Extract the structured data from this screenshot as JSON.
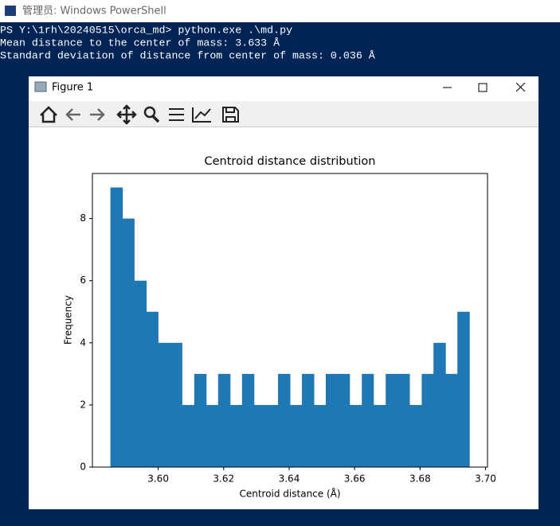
{
  "window": {
    "title": "管理员: Windows PowerShell"
  },
  "console": {
    "lines": [
      "PS Y:\\1rh\\20240515\\orca_md> python.exe .\\md.py",
      "Mean distance to the center of mass: 3.633 Å",
      "Standard deviation of distance from center of mass: 0.036 Å"
    ]
  },
  "figure_window": {
    "title": "Figure 1"
  },
  "chart_data": {
    "type": "histogram",
    "title": "Centroid distance distribution",
    "xlabel": "Centroid distance (Å)",
    "ylabel": "Frequency",
    "color": "#1f77b4",
    "bins": [
      3.5854,
      3.5891,
      3.5927,
      3.5964,
      3.6,
      3.6037,
      3.6073,
      3.611,
      3.6147,
      3.6183,
      3.622,
      3.6256,
      3.6293,
      3.6329,
      3.6366,
      3.6403,
      3.6439,
      3.6476,
      3.6512,
      3.6549,
      3.6585,
      3.6622,
      3.6658,
      3.6695,
      3.6732,
      3.6768,
      3.6805,
      3.6841,
      3.6878,
      3.6914,
      3.6951
    ],
    "values": [
      9,
      8,
      6,
      5,
      4,
      4,
      2,
      3,
      2,
      3,
      2,
      3,
      2,
      2,
      3,
      2,
      3,
      2,
      3,
      3,
      2,
      3,
      2,
      3,
      3,
      2,
      3,
      4,
      3,
      5
    ],
    "xlim": [
      3.5799,
      3.7006
    ],
    "xticks": [
      {
        "value": 3.6,
        "label": "3.60"
      },
      {
        "value": 3.62,
        "label": "3.62"
      },
      {
        "value": 3.64,
        "label": "3.64"
      },
      {
        "value": 3.66,
        "label": "3.66"
      },
      {
        "value": 3.68,
        "label": "3.68"
      },
      {
        "value": 3.7,
        "label": "3.70"
      }
    ],
    "ylim": [
      0,
      9.45
    ],
    "yticks": [
      0,
      2,
      4,
      6,
      8
    ]
  }
}
